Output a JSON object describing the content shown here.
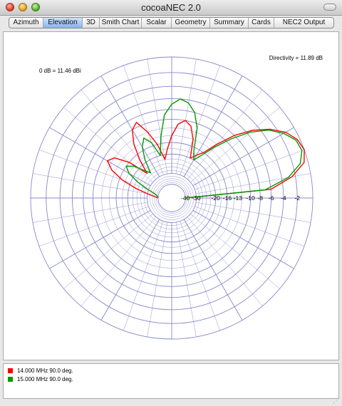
{
  "window": {
    "title": "cocoaNEC 2.0"
  },
  "tabs": [
    {
      "label": "Azimuth",
      "active": false
    },
    {
      "label": "Elevation",
      "active": true
    },
    {
      "label": "3D",
      "active": false
    },
    {
      "label": "Smith Chart",
      "active": false
    },
    {
      "label": "Scalar",
      "active": false
    },
    {
      "label": "Geometry",
      "active": false
    },
    {
      "label": "Summary",
      "active": false
    },
    {
      "label": "Cards",
      "active": false
    },
    {
      "label": "NEC2 Output",
      "active": false
    }
  ],
  "plot": {
    "reference_label": "0 dB = 11.46 dBi",
    "directivity_label": "Directivity = 11.89 dB",
    "ring_labels": [
      "-40",
      "-30",
      "-20",
      "-16",
      "-13",
      "-10",
      "-8",
      "-6",
      "-4",
      "-2"
    ],
    "grid_color": "#8888cc"
  },
  "chart_data": {
    "type": "line",
    "series": [
      {
        "name": "14.000 MHz 90.0 deg.",
        "color": "#ff0000",
        "angles_deg": [
          0,
          5,
          10,
          15,
          20,
          25,
          30,
          35,
          40,
          45,
          50,
          55,
          60,
          65,
          70,
          75,
          80,
          85,
          90,
          95,
          100,
          105,
          110,
          115,
          120,
          125,
          130,
          135,
          140,
          145,
          150,
          155,
          160,
          165,
          170,
          175,
          180
        ],
        "gain_db": [
          -40,
          -6,
          -2.5,
          -0.5,
          0,
          -0.3,
          -1.2,
          -2.8,
          -5,
          -8,
          -12,
          -16,
          -18,
          -20,
          -14,
          -11,
          -10,
          -11,
          -14,
          -18,
          -22,
          -16,
          -12,
          -9,
          -10,
          -13,
          -18,
          -24,
          -16,
          -12,
          -11,
          -13,
          -17,
          -23,
          -30,
          -36,
          -40
        ]
      },
      {
        "name": "15.000 MHz 90.0 deg.",
        "color": "#009900",
        "angles_deg": [
          0,
          5,
          10,
          15,
          20,
          25,
          30,
          35,
          40,
          45,
          50,
          55,
          60,
          65,
          70,
          75,
          80,
          85,
          90,
          95,
          100,
          105,
          110,
          115,
          120,
          125,
          130,
          135,
          140,
          145,
          150,
          155,
          160,
          165,
          170,
          175,
          180
        ],
        "gain_db": [
          -40,
          -7,
          -3,
          -1,
          -0.3,
          -0.5,
          -1.5,
          -3,
          -5.5,
          -9,
          -13,
          -17,
          -20,
          -17,
          -11,
          -8,
          -6.5,
          -6,
          -7,
          -9,
          -14,
          -20,
          -15,
          -13,
          -15,
          -19,
          -25,
          -22,
          -18,
          -16,
          -18,
          -23,
          -29,
          -35,
          -38,
          -40,
          -40
        ]
      }
    ],
    "ring_values_db": [
      -40,
      -30,
      -20,
      -16,
      -13,
      -10,
      -8,
      -6,
      -4,
      -2,
      0
    ],
    "spoke_step_deg": 10,
    "grid": true
  },
  "legend": [
    {
      "label": "14.000 MHz 90.0 deg.",
      "color": "#ff0000"
    },
    {
      "label": "15.000 MHz 90.0 deg.",
      "color": "#009900"
    }
  ]
}
